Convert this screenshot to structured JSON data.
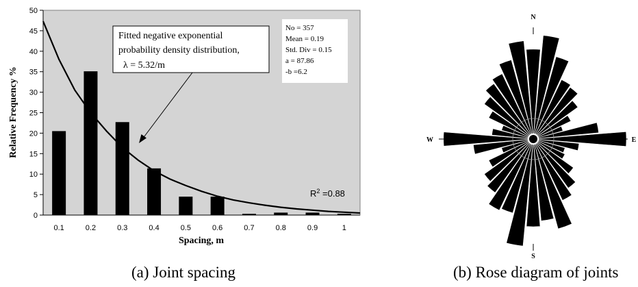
{
  "chart_data": [
    {
      "type": "bar",
      "ylabel": "Relative Frequency %",
      "xlabel": "Spacing, m",
      "categories": [
        "0.1",
        "0.2",
        "0.3",
        "0.4",
        "0.5",
        "0.6",
        "0.7",
        "0.8",
        "0.9",
        "1"
      ],
      "values": [
        20.5,
        35.1,
        22.7,
        11.4,
        4.5,
        4.5,
        0.3,
        0.6,
        0.6,
        0.3
      ],
      "ylim": [
        0,
        50
      ],
      "yticks": [
        "0",
        "5",
        "10",
        "15",
        "20",
        "25",
        "30",
        "35",
        "40",
        "45",
        "50"
      ],
      "grid": false,
      "background": "#d4d4d4",
      "bar_color": "#000000",
      "fit_curve": {
        "type": "line",
        "x": [
          0.05,
          0.1,
          0.15,
          0.2,
          0.25,
          0.3,
          0.35,
          0.4,
          0.45,
          0.5,
          0.55,
          0.6,
          0.65,
          0.7,
          0.75,
          0.8,
          0.85,
          0.9,
          0.95,
          1.0,
          1.05
        ],
        "y": [
          47.3,
          38.0,
          30.5,
          25.0,
          20.5,
          16.5,
          13.4,
          10.8,
          8.8,
          7.2,
          5.8,
          4.6,
          3.7,
          3.0,
          2.4,
          1.9,
          1.5,
          1.2,
          0.9,
          0.7,
          0.5
        ]
      },
      "callout": {
        "line1": "Fitted negative exponential",
        "line2": "probability density distribution,",
        "line3": "λ = 5.32/m"
      },
      "stats": [
        "No = 357",
        "Mean = 0.19",
        "Std. Div = 0.15",
        "a = 87.86",
        "-b =6.2"
      ],
      "r2": {
        "prefix": "R",
        "sup": "2",
        "suffix": " =0.88"
      },
      "caption": "(a) Joint spacing"
    },
    {
      "type": "rose",
      "labels": {
        "north": "N",
        "south": "S",
        "west": "W",
        "east": "E"
      },
      "petal_half_width_deg": 4.5,
      "petals": [
        {
          "azimuth": 0,
          "length": 0.82
        },
        {
          "azimuth": 10,
          "length": 0.95
        },
        {
          "azimuth": 20,
          "length": 0.78
        },
        {
          "azimuth": 30,
          "length": 0.6
        },
        {
          "azimuth": 40,
          "length": 0.58
        },
        {
          "azimuth": 50,
          "length": 0.5
        },
        {
          "azimuth": 60,
          "length": 0.38
        },
        {
          "azimuth": 70,
          "length": 0.28
        },
        {
          "azimuth": 80,
          "length": 0.6
        },
        {
          "azimuth": 90,
          "length": 0.85
        },
        {
          "azimuth": 100,
          "length": 0.42
        },
        {
          "azimuth": 110,
          "length": 0.3
        },
        {
          "azimuth": 120,
          "length": 0.32
        },
        {
          "azimuth": 130,
          "length": 0.45
        },
        {
          "azimuth": 140,
          "length": 0.55
        },
        {
          "azimuth": 150,
          "length": 0.62
        },
        {
          "azimuth": 160,
          "length": 0.85
        },
        {
          "azimuth": 170,
          "length": 0.75
        },
        {
          "azimuth": 180,
          "length": 0.8
        },
        {
          "azimuth": 190,
          "length": 0.98
        },
        {
          "azimuth": 200,
          "length": 0.7
        },
        {
          "azimuth": 210,
          "length": 0.72
        },
        {
          "azimuth": 220,
          "length": 0.6
        },
        {
          "azimuth": 230,
          "length": 0.55
        },
        {
          "azimuth": 240,
          "length": 0.45
        },
        {
          "azimuth": 250,
          "length": 0.3
        },
        {
          "azimuth": 260,
          "length": 0.55
        },
        {
          "azimuth": 270,
          "length": 0.82
        },
        {
          "azimuth": 280,
          "length": 0.38
        },
        {
          "azimuth": 290,
          "length": 0.3
        },
        {
          "azimuth": 300,
          "length": 0.45
        },
        {
          "azimuth": 310,
          "length": 0.55
        },
        {
          "azimuth": 320,
          "length": 0.62
        },
        {
          "azimuth": 330,
          "length": 0.66
        },
        {
          "azimuth": 340,
          "length": 0.75
        },
        {
          "azimuth": 350,
          "length": 0.9
        }
      ],
      "caption": "(b) Rose diagram of joints"
    }
  ]
}
